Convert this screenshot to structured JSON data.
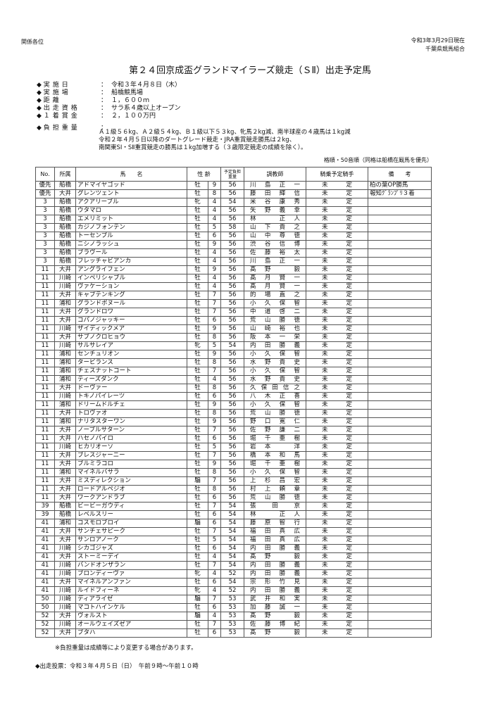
{
  "header": {
    "addressee": "関係各位",
    "as_of": "令和3年3月29日現在",
    "org": "千葉県競馬組合"
  },
  "title": "第２４回京成盃グランドマイラーズ競走（ＳⅡ）出走予定馬",
  "info": [
    {
      "label": "実施日",
      "value": "令和３年４月８日（木）"
    },
    {
      "label": "実施場",
      "value": "船橋競馬場"
    },
    {
      "label": "距離",
      "value": "１，６００ｍ"
    },
    {
      "label": "出走資格",
      "value": "サラ系４歳以上オープン"
    },
    {
      "label": "１着賞金",
      "value": "２，１００万円"
    },
    {
      "label": "負担重量",
      "value": ""
    }
  ],
  "weight_rules": [
    "Ａ１級５６kg、Ａ２級５４kg、Ｂ１級以下５３kg、牝馬２kg減、南半球産の４歳馬は１kg減",
    "令和２年４月５日以降のダートグレード競走・JRA重賞競走勝馬は２kg、",
    "南関東SⅠ・SⅡ重賞競走の勝馬は１kg加増する（３歳限定競走の成績を除く）。"
  ],
  "sort_note": "格順・50音順（同格は船橋在厩馬を優先）",
  "columns": {
    "no": "No.",
    "affiliation": "所属",
    "horse": "馬　　名",
    "sex_age": "性 齢",
    "weight": "予定負担重量",
    "trainer": "調教師",
    "jockey": "騎乗予定騎手",
    "remarks": "備　　考"
  },
  "rows": [
    [
      "優先",
      "船橋",
      "アドマイヤゴッド",
      "牡",
      "9",
      "56",
      "川島正一",
      "未定",
      "柏の葉OP勝馬"
    ],
    [
      "優先",
      "大井",
      "グレンツェント",
      "牡",
      "8",
      "56",
      "藤田輝信",
      "未定",
      "報知ｸﾞﾗﾝﾌﾟﾘ３着"
    ],
    [
      "3",
      "船橋",
      "アクアリーブル",
      "牝",
      "4",
      "54",
      "米谷康秀",
      "未定",
      ""
    ],
    [
      "3",
      "船橋",
      "ウタマロ",
      "牡",
      "4",
      "56",
      "矢野義幸",
      "未定",
      ""
    ],
    [
      "3",
      "船橋",
      "エメリミット",
      "牡",
      "4",
      "56",
      "林　正人",
      "未定",
      ""
    ],
    [
      "3",
      "船橋",
      "カジノフォンテン",
      "牡",
      "5",
      "58",
      "山下貴之",
      "未定",
      ""
    ],
    [
      "3",
      "船橋",
      "トーセンブル",
      "牡",
      "6",
      "56",
      "山中尊徳",
      "未定",
      ""
    ],
    [
      "3",
      "船橋",
      "ニシノラッシュ",
      "牡",
      "9",
      "56",
      "渋谷信博",
      "未定",
      ""
    ],
    [
      "3",
      "船橋",
      "ブラヴール",
      "牡",
      "4",
      "56",
      "佐藤裕太",
      "未定",
      ""
    ],
    [
      "3",
      "船橋",
      "フレッチャビアンカ",
      "牡",
      "4",
      "56",
      "川島正一",
      "未定",
      ""
    ],
    [
      "11",
      "大井",
      "アングライフェン",
      "牡",
      "9",
      "56",
      "髙野　毅",
      "未定",
      ""
    ],
    [
      "11",
      "川崎",
      "インペリシャブル",
      "牡",
      "4",
      "56",
      "髙月賢一",
      "未定",
      ""
    ],
    [
      "11",
      "川崎",
      "ヴァケーション",
      "牡",
      "4",
      "56",
      "髙月賢一",
      "未定",
      ""
    ],
    [
      "11",
      "大井",
      "キャプテンキング",
      "牡",
      "7",
      "56",
      "的場直之",
      "未定",
      ""
    ],
    [
      "11",
      "浦和",
      "グランドボヌール",
      "牡",
      "7",
      "56",
      "小久保智",
      "未定",
      ""
    ],
    [
      "11",
      "大井",
      "グランドロワ",
      "牡",
      "7",
      "56",
      "中道啓二",
      "未定",
      ""
    ],
    [
      "11",
      "大井",
      "コパノジャッキー",
      "牡",
      "6",
      "56",
      "荒山勝徳",
      "未定",
      ""
    ],
    [
      "11",
      "川崎",
      "ザイディックメア",
      "牡",
      "9",
      "56",
      "山崎裕也",
      "未定",
      ""
    ],
    [
      "11",
      "大井",
      "サブノクロヒョウ",
      "牡",
      "8",
      "56",
      "阪本一栄",
      "未定",
      ""
    ],
    [
      "11",
      "川崎",
      "サルサレイア",
      "牝",
      "5",
      "54",
      "内田勝義",
      "未定",
      ""
    ],
    [
      "11",
      "浦和",
      "センチュリオン",
      "牡",
      "9",
      "56",
      "小久保智",
      "未定",
      ""
    ],
    [
      "11",
      "浦和",
      "タービランス",
      "牡",
      "8",
      "56",
      "水野貴史",
      "未定",
      ""
    ],
    [
      "11",
      "浦和",
      "チェスナットコート",
      "牡",
      "7",
      "56",
      "小久保智",
      "未定",
      ""
    ],
    [
      "11",
      "浦和",
      "ティーズダンク",
      "牡",
      "4",
      "56",
      "水野貴史",
      "未定",
      ""
    ],
    [
      "11",
      "大井",
      "ドーヴァー",
      "牡",
      "8",
      "56",
      "久保田信之",
      "未定",
      ""
    ],
    [
      "11",
      "川崎",
      "トキノパイレーツ",
      "牡",
      "6",
      "56",
      "八木正喜",
      "未定",
      ""
    ],
    [
      "11",
      "浦和",
      "ドリームドルチェ",
      "牡",
      "9",
      "56",
      "小久保智",
      "未定",
      ""
    ],
    [
      "11",
      "大井",
      "トロヴァオ",
      "牡",
      "8",
      "56",
      "荒山勝徳",
      "未定",
      ""
    ],
    [
      "11",
      "浦和",
      "ナリタスターワン",
      "牡",
      "9",
      "56",
      "野口寛仁",
      "未定",
      ""
    ],
    [
      "11",
      "大井",
      "ノーブルサターン",
      "牡",
      "7",
      "56",
      "佐野謙二",
      "未定",
      ""
    ],
    [
      "11",
      "大井",
      "ハセノパイロ",
      "牡",
      "6",
      "56",
      "堀千亜樹",
      "未定",
      ""
    ],
    [
      "11",
      "川崎",
      "ヒカリオーソ",
      "牡",
      "5",
      "56",
      "岩本　洋",
      "未定",
      ""
    ],
    [
      "11",
      "大井",
      "ブレスジャーニー",
      "牡",
      "7",
      "56",
      "橋本和馬",
      "未定",
      ""
    ],
    [
      "11",
      "大井",
      "ブルミラコロ",
      "牡",
      "9",
      "56",
      "堀千亜樹",
      "未定",
      ""
    ],
    [
      "11",
      "浦和",
      "マイネルバサラ",
      "牡",
      "8",
      "56",
      "小久保智",
      "未定",
      ""
    ],
    [
      "11",
      "大井",
      "ミスディレクション",
      "騸",
      "7",
      "56",
      "上杉昌宏",
      "未定",
      ""
    ],
    [
      "11",
      "大井",
      "ロードアルペジオ",
      "牡",
      "8",
      "56",
      "村上頼章",
      "未定",
      ""
    ],
    [
      "11",
      "大井",
      "ワークアンドラブ",
      "牡",
      "6",
      "56",
      "荒山勝徳",
      "未定",
      ""
    ],
    [
      "39",
      "船橋",
      "ビービーガウディ",
      "牡",
      "7",
      "54",
      "張田京",
      "未定",
      ""
    ],
    [
      "39",
      "船橋",
      "レベルスリー",
      "牡",
      "6",
      "54",
      "林　正人",
      "未定",
      ""
    ],
    [
      "41",
      "浦和",
      "コスモロブロイ",
      "騸",
      "6",
      "54",
      "藤原智行",
      "未定",
      ""
    ],
    [
      "41",
      "大井",
      "サンチェサピーク",
      "牡",
      "7",
      "54",
      "福田真広",
      "未定",
      ""
    ],
    [
      "41",
      "大井",
      "サンロアノーク",
      "牡",
      "5",
      "54",
      "福田真広",
      "未定",
      ""
    ],
    [
      "41",
      "川崎",
      "シカゴジャズ",
      "牡",
      "6",
      "54",
      "内田勝義",
      "未定",
      ""
    ],
    [
      "41",
      "大井",
      "ストーミーデイ",
      "牡",
      "4",
      "54",
      "髙野　毅",
      "未定",
      ""
    ],
    [
      "41",
      "川崎",
      "バンドオンザラン",
      "牡",
      "7",
      "54",
      "内田勝義",
      "未定",
      ""
    ],
    [
      "41",
      "川崎",
      "ブロンディーヴァ",
      "牝",
      "4",
      "52",
      "内田勝義",
      "未定",
      ""
    ],
    [
      "41",
      "大井",
      "マイネルアンファン",
      "牡",
      "6",
      "54",
      "宗形竹見",
      "未定",
      ""
    ],
    [
      "41",
      "川崎",
      "ルイドフィーネ",
      "牝",
      "4",
      "52",
      "内田勝義",
      "未定",
      ""
    ],
    [
      "50",
      "川崎",
      "ディアライゼ",
      "騸",
      "7",
      "53",
      "武井和実",
      "未定",
      ""
    ],
    [
      "50",
      "川崎",
      "マコトハインケル",
      "牡",
      "6",
      "53",
      "加藤誠一",
      "未定",
      ""
    ],
    [
      "52",
      "大井",
      "ヴォルスト",
      "騸",
      "4",
      "53",
      "髙野　毅",
      "未定",
      ""
    ],
    [
      "52",
      "川崎",
      "オールウェイズゼア",
      "牡",
      "7",
      "53",
      "佐藤博紀",
      "未定",
      ""
    ],
    [
      "52",
      "大井",
      "ブタハ",
      "牡",
      "6",
      "53",
      "髙野　毅",
      "未定",
      ""
    ]
  ],
  "note": "※負担重量は成績等により変更する場合があります。",
  "vote": "◆出走投票：令和３年４月５日（日）　午前９時～午前１０時"
}
